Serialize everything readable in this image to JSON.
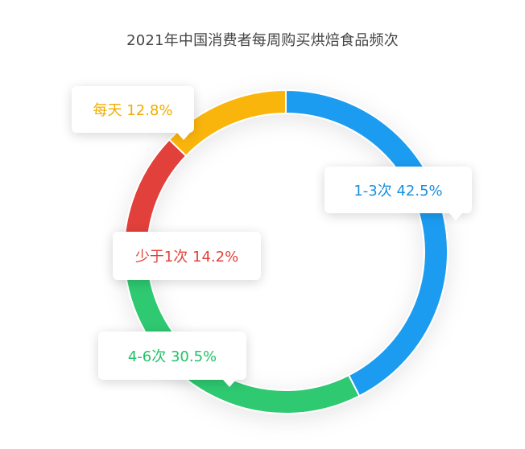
{
  "chart_data": {
    "type": "pie",
    "title": "2021年中国消费者每周购买烘焙食品频次",
    "categories": [
      "1-3次",
      "4-6次",
      "少于1次",
      "每天"
    ],
    "values": [
      42.5,
      30.5,
      14.2,
      12.8
    ],
    "labels": [
      "1-3次 42.5%",
      "4-6次 30.5%",
      "少于1次 14.2%",
      "每天 12.8%"
    ],
    "colors": [
      "#1a9cf0",
      "#2ec971",
      "#e2403a",
      "#fab507"
    ],
    "label_colors": [
      "#1a90e0",
      "#22c268",
      "#e2403a",
      "#f0ad00"
    ],
    "unit": "%",
    "donut": true,
    "legend": "none"
  }
}
